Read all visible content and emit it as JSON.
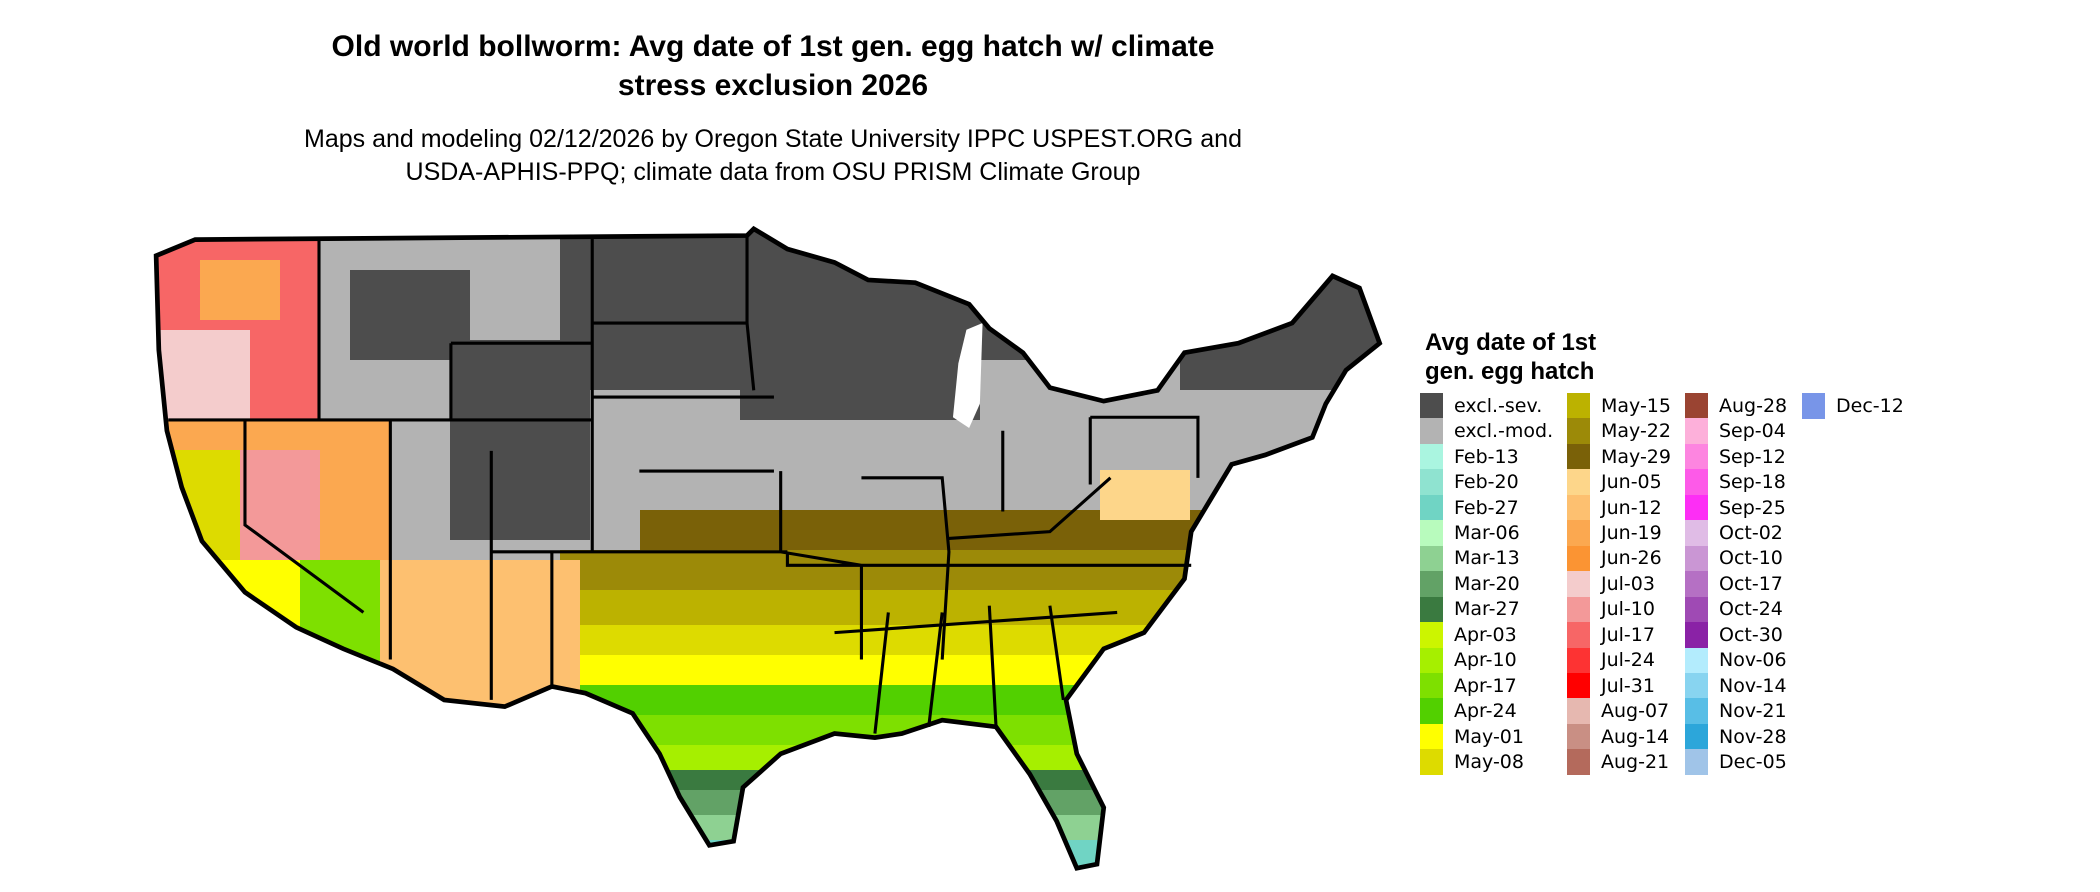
{
  "title": {
    "line1": "Old world bollworm: Avg date of 1st gen. egg hatch w/ climate",
    "line2": "stress exclusion 2026"
  },
  "subtitle": {
    "line1": "Maps and modeling 02/12/2026 by Oregon State University IPPC USPEST.ORG and",
    "line2": "USDA-APHIS-PPQ; climate data from OSU PRISM Climate Group"
  },
  "legend": {
    "title_line1": "Avg date of 1st",
    "title_line2": "gen. egg hatch",
    "items": [
      {
        "label": "excl.-sev.",
        "color": "#4d4d4d"
      },
      {
        "label": "excl.-mod.",
        "color": "#b3b3b3"
      },
      {
        "label": "Feb-13",
        "color": "#aaf5e0"
      },
      {
        "label": "Feb-20",
        "color": "#8fe3d0"
      },
      {
        "label": "Feb-27",
        "color": "#70d4c4"
      },
      {
        "label": "Mar-06",
        "color": "#b8fbbd"
      },
      {
        "label": "Mar-13",
        "color": "#8ed192"
      },
      {
        "label": "Mar-20",
        "color": "#62a266"
      },
      {
        "label": "Mar-27",
        "color": "#3a7a40"
      },
      {
        "label": "Apr-03",
        "color": "#ccf500"
      },
      {
        "label": "Apr-10",
        "color": "#a6ef00"
      },
      {
        "label": "Apr-17",
        "color": "#7ee000"
      },
      {
        "label": "Apr-24",
        "color": "#52d000"
      },
      {
        "label": "May-01",
        "color": "#ffff00"
      },
      {
        "label": "May-08",
        "color": "#dddb00"
      },
      {
        "label": "May-15",
        "color": "#bcb200"
      },
      {
        "label": "May-22",
        "color": "#9c8a08"
      },
      {
        "label": "May-29",
        "color": "#7a6108"
      },
      {
        "label": "Jun-05",
        "color": "#fdd68a"
      },
      {
        "label": "Jun-12",
        "color": "#fdc070"
      },
      {
        "label": "Jun-19",
        "color": "#fba850"
      },
      {
        "label": "Jun-26",
        "color": "#fb9433"
      },
      {
        "label": "Jul-03",
        "color": "#f4cccc"
      },
      {
        "label": "Jul-10",
        "color": "#f39999"
      },
      {
        "label": "Jul-17",
        "color": "#f76666"
      },
      {
        "label": "Jul-24",
        "color": "#fd3333"
      },
      {
        "label": "Jul-31",
        "color": "#ff0000"
      },
      {
        "label": "Aug-07",
        "color": "#e6b8b0"
      },
      {
        "label": "Aug-14",
        "color": "#c98f84"
      },
      {
        "label": "Aug-21",
        "color": "#b46a5c"
      },
      {
        "label": "Aug-28",
        "color": "#9a4432"
      },
      {
        "label": "Sep-04",
        "color": "#fdb0da"
      },
      {
        "label": "Sep-12",
        "color": "#fd85e0"
      },
      {
        "label": "Sep-18",
        "color": "#fd5ae8"
      },
      {
        "label": "Sep-25",
        "color": "#fd2ef5"
      },
      {
        "label": "Oct-02",
        "color": "#e0bce6"
      },
      {
        "label": "Oct-10",
        "color": "#ca96d4"
      },
      {
        "label": "Oct-17",
        "color": "#b570c4"
      },
      {
        "label": "Oct-24",
        "color": "#9f4ab4"
      },
      {
        "label": "Oct-30",
        "color": "#8a22a6"
      },
      {
        "label": "Nov-06",
        "color": "#b3ecfd"
      },
      {
        "label": "Nov-14",
        "color": "#88d4f0"
      },
      {
        "label": "Nov-21",
        "color": "#58bee6"
      },
      {
        "label": "Nov-28",
        "color": "#2ca6da"
      },
      {
        "label": "Dec-05",
        "color": "#a0c4e8"
      },
      {
        "label": "Dec-12",
        "color": "#7895e8"
      }
    ]
  }
}
